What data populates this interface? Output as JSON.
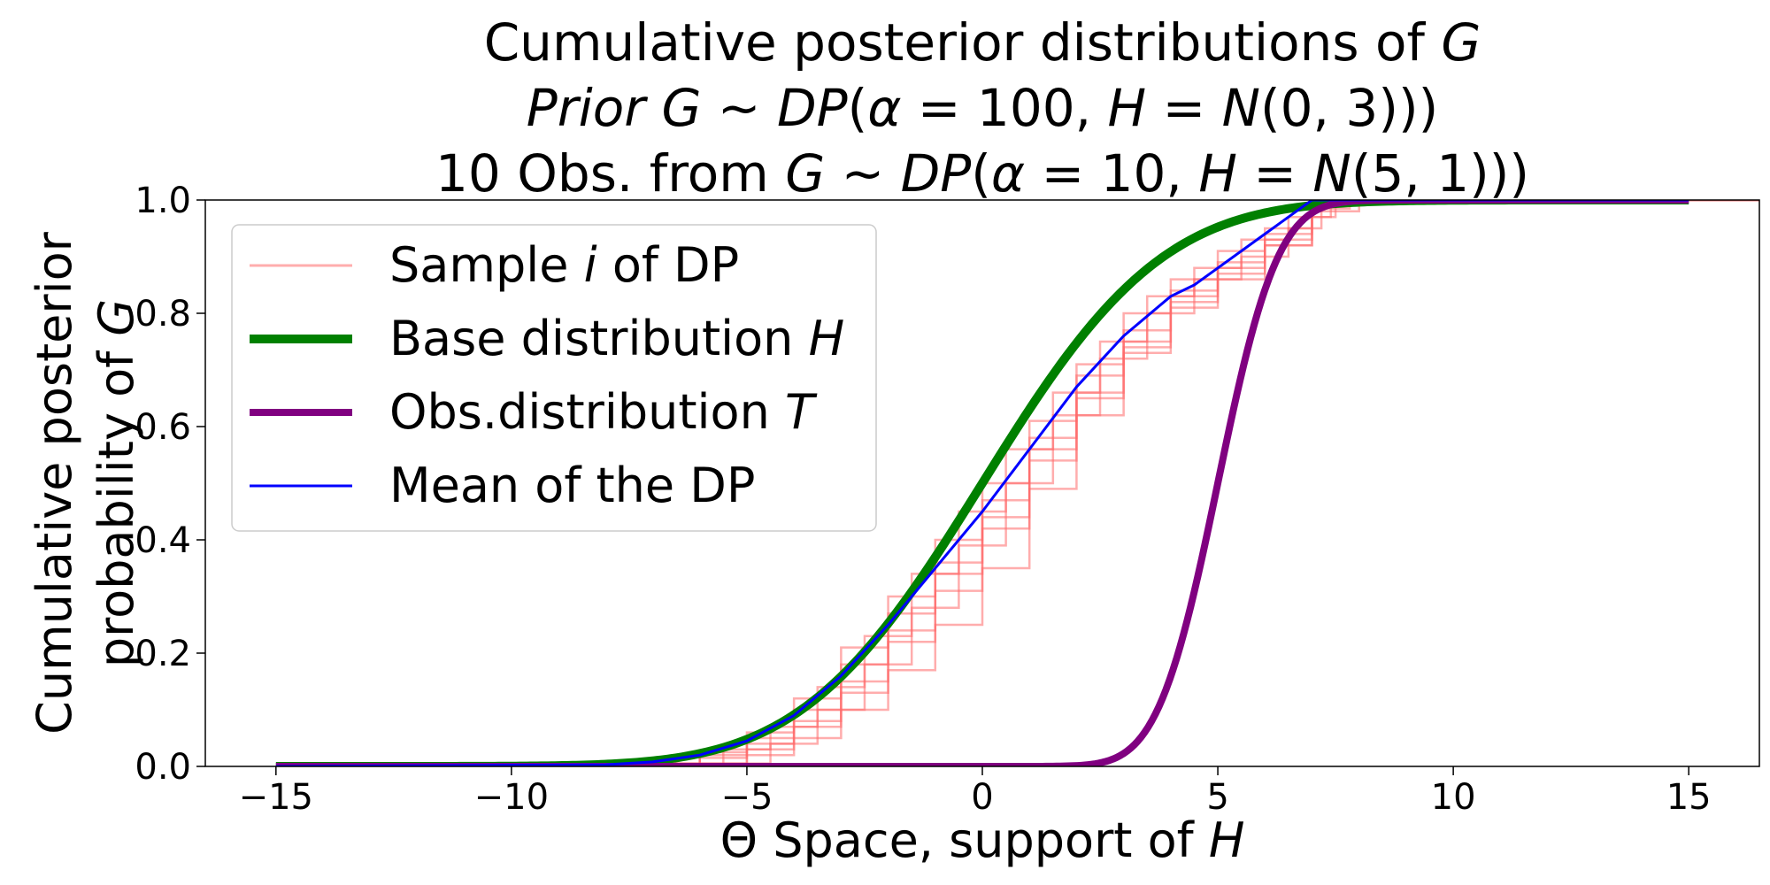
{
  "chart_data": {
    "type": "line",
    "title_lines": [
      [
        {
          "t": "Cumulative posterior distributions of "
        },
        {
          "t": "G",
          "i": true
        }
      ],
      [
        {
          "t": "Prior G",
          "i": true
        },
        {
          "t": " ~ "
        },
        {
          "t": "DP",
          "i": true
        },
        {
          "t": "("
        },
        {
          "t": "α",
          "i": true
        },
        {
          "t": " = 100, "
        },
        {
          "t": "H",
          "i": true
        },
        {
          "t": " = "
        },
        {
          "t": "N",
          "i": true
        },
        {
          "t": "(0, 3)))"
        }
      ],
      [
        {
          "t": "10 Obs. from "
        },
        {
          "t": "G",
          "i": true
        },
        {
          "t": " ~ "
        },
        {
          "t": "DP",
          "i": true
        },
        {
          "t": "("
        },
        {
          "t": "α",
          "i": true
        },
        {
          "t": " = 10, "
        },
        {
          "t": "H",
          "i": true
        },
        {
          "t": " = "
        },
        {
          "t": "N",
          "i": true
        },
        {
          "t": "(5, 1)))"
        }
      ]
    ],
    "xlabel": [
      {
        "t": "Θ Space, support of "
      },
      {
        "t": "H",
        "i": true
      }
    ],
    "ylabel_lines": [
      [
        {
          "t": "Cumulative posterior"
        }
      ],
      [
        {
          "t": "probability of "
        },
        {
          "t": "G",
          "i": true
        }
      ]
    ],
    "xlim": [
      -16.5,
      16.5
    ],
    "ylim": [
      0.0,
      1.0
    ],
    "x_ticks": [
      -15,
      -10,
      -5,
      0,
      5,
      10,
      15
    ],
    "x_tick_labels": [
      "−15",
      "−10",
      "−5",
      "0",
      "5",
      "10",
      "15"
    ],
    "y_ticks": [
      0.0,
      0.2,
      0.4,
      0.6,
      0.8,
      1.0
    ],
    "y_tick_labels": [
      "0.0",
      "0.2",
      "0.4",
      "0.6",
      "0.8",
      "1.0"
    ],
    "grid": false,
    "legend_position": "upper-left",
    "legend": [
      {
        "label": [
          {
            "t": "Sample "
          },
          {
            "t": "i",
            "i": true
          },
          {
            "t": " of DP"
          }
        ],
        "color": "#ff6a6a",
        "opacity": 0.55,
        "width": 3
      },
      {
        "label": [
          {
            "t": "Base distribution "
          },
          {
            "t": "H",
            "i": true
          }
        ],
        "color": "#008000",
        "opacity": 1,
        "width": 10
      },
      {
        "label": [
          {
            "t": "Obs.distribution "
          },
          {
            "t": "T",
            "i": true
          }
        ],
        "color": "#800080",
        "opacity": 1,
        "width": 8
      },
      {
        "label": [
          {
            "t": "Mean of the DP"
          }
        ],
        "color": "#0000ff",
        "opacity": 1,
        "width": 3
      }
    ],
    "series": [
      {
        "name": "Sample i of DP",
        "kind": "samples",
        "color": "#ff6a6a",
        "samples": [
          {
            "x": [
              -8.3,
              -6,
              -5,
              -4,
              -3,
              -2,
              -1,
              0,
              1,
              2,
              3,
              4,
              5,
              6,
              7,
              8
            ],
            "y": [
              0.005,
              0.02,
              0.05,
              0.1,
              0.18,
              0.27,
              0.36,
              0.47,
              0.58,
              0.69,
              0.77,
              0.84,
              0.89,
              0.94,
              0.98,
              1.0
            ]
          },
          {
            "x": [
              -7.5,
              -6,
              -5,
              -4,
              -3,
              -2,
              -1,
              0,
              1,
              2,
              3,
              4,
              5,
              6,
              7,
              7.8
            ],
            "y": [
              0.005,
              0.025,
              0.06,
              0.12,
              0.21,
              0.3,
              0.4,
              0.5,
              0.61,
              0.71,
              0.8,
              0.86,
              0.91,
              0.95,
              0.985,
              1.0
            ]
          },
          {
            "x": [
              -7,
              -6,
              -5,
              -4,
              -3,
              -2,
              -1,
              0,
              1,
              2,
              3,
              4,
              5,
              6,
              7
            ],
            "y": [
              0.005,
              0.015,
              0.04,
              0.08,
              0.15,
              0.24,
              0.34,
              0.44,
              0.56,
              0.66,
              0.75,
              0.83,
              0.88,
              0.93,
              1.0
            ]
          },
          {
            "x": [
              -6.5,
              -5,
              -4,
              -3,
              -2,
              -1,
              0,
              1,
              2,
              3,
              4,
              5,
              6,
              7,
              7.5
            ],
            "y": [
              0.005,
              0.03,
              0.07,
              0.13,
              0.22,
              0.31,
              0.42,
              0.54,
              0.65,
              0.74,
              0.82,
              0.87,
              0.92,
              0.97,
              1.0
            ]
          },
          {
            "x": [
              -6,
              -5,
              -4,
              -3,
              -2,
              -1,
              0,
              1,
              2,
              3,
              4,
              5,
              6,
              7
            ],
            "y": [
              0.005,
              0.02,
              0.05,
              0.1,
              0.17,
              0.25,
              0.35,
              0.49,
              0.62,
              0.73,
              0.81,
              0.86,
              0.92,
              1.0
            ]
          },
          {
            "x": [
              -5.5,
              -4.5,
              -3.5,
              -2.5,
              -1.5,
              -0.5,
              0.5,
              1.5,
              2.5,
              3.5,
              4.5,
              5.5,
              6.5,
              7.2
            ],
            "y": [
              0.005,
              0.04,
              0.1,
              0.18,
              0.28,
              0.39,
              0.5,
              0.62,
              0.72,
              0.8,
              0.86,
              0.9,
              0.95,
              1.0
            ]
          },
          {
            "x": [
              -6.8,
              -5.5,
              -4.5,
              -3.5,
              -2.5,
              -1.5,
              -0.5,
              0.5,
              1.5,
              2.5,
              3.5,
              4.5,
              5.5,
              6.5,
              7.4
            ],
            "y": [
              0.005,
              0.03,
              0.07,
              0.14,
              0.23,
              0.34,
              0.45,
              0.56,
              0.66,
              0.75,
              0.83,
              0.88,
              0.93,
              0.97,
              1.0
            ]
          }
        ]
      },
      {
        "name": "Base distribution H",
        "kind": "normal_cdf",
        "mean": 0,
        "sd": 3,
        "x_range": [
          -15,
          15
        ],
        "color": "#008000"
      },
      {
        "name": "Obs.distribution T",
        "kind": "normal_cdf",
        "mean": 5,
        "sd": 1,
        "x_range": [
          -15,
          15
        ],
        "color": "#800080"
      },
      {
        "name": "Mean of the DP",
        "kind": "line",
        "color": "#0000ff",
        "x": [
          -15,
          -8,
          -7,
          -6,
          -5,
          -4,
          -3,
          -2,
          -1,
          0,
          1,
          2,
          3,
          4,
          4.5,
          5,
          5.5,
          6,
          6.5,
          7,
          15
        ],
        "y": [
          0.0,
          0.003,
          0.008,
          0.02,
          0.045,
          0.09,
          0.16,
          0.25,
          0.35,
          0.45,
          0.56,
          0.67,
          0.76,
          0.83,
          0.85,
          0.88,
          0.91,
          0.94,
          0.97,
          1.0,
          1.0
        ]
      }
    ]
  }
}
